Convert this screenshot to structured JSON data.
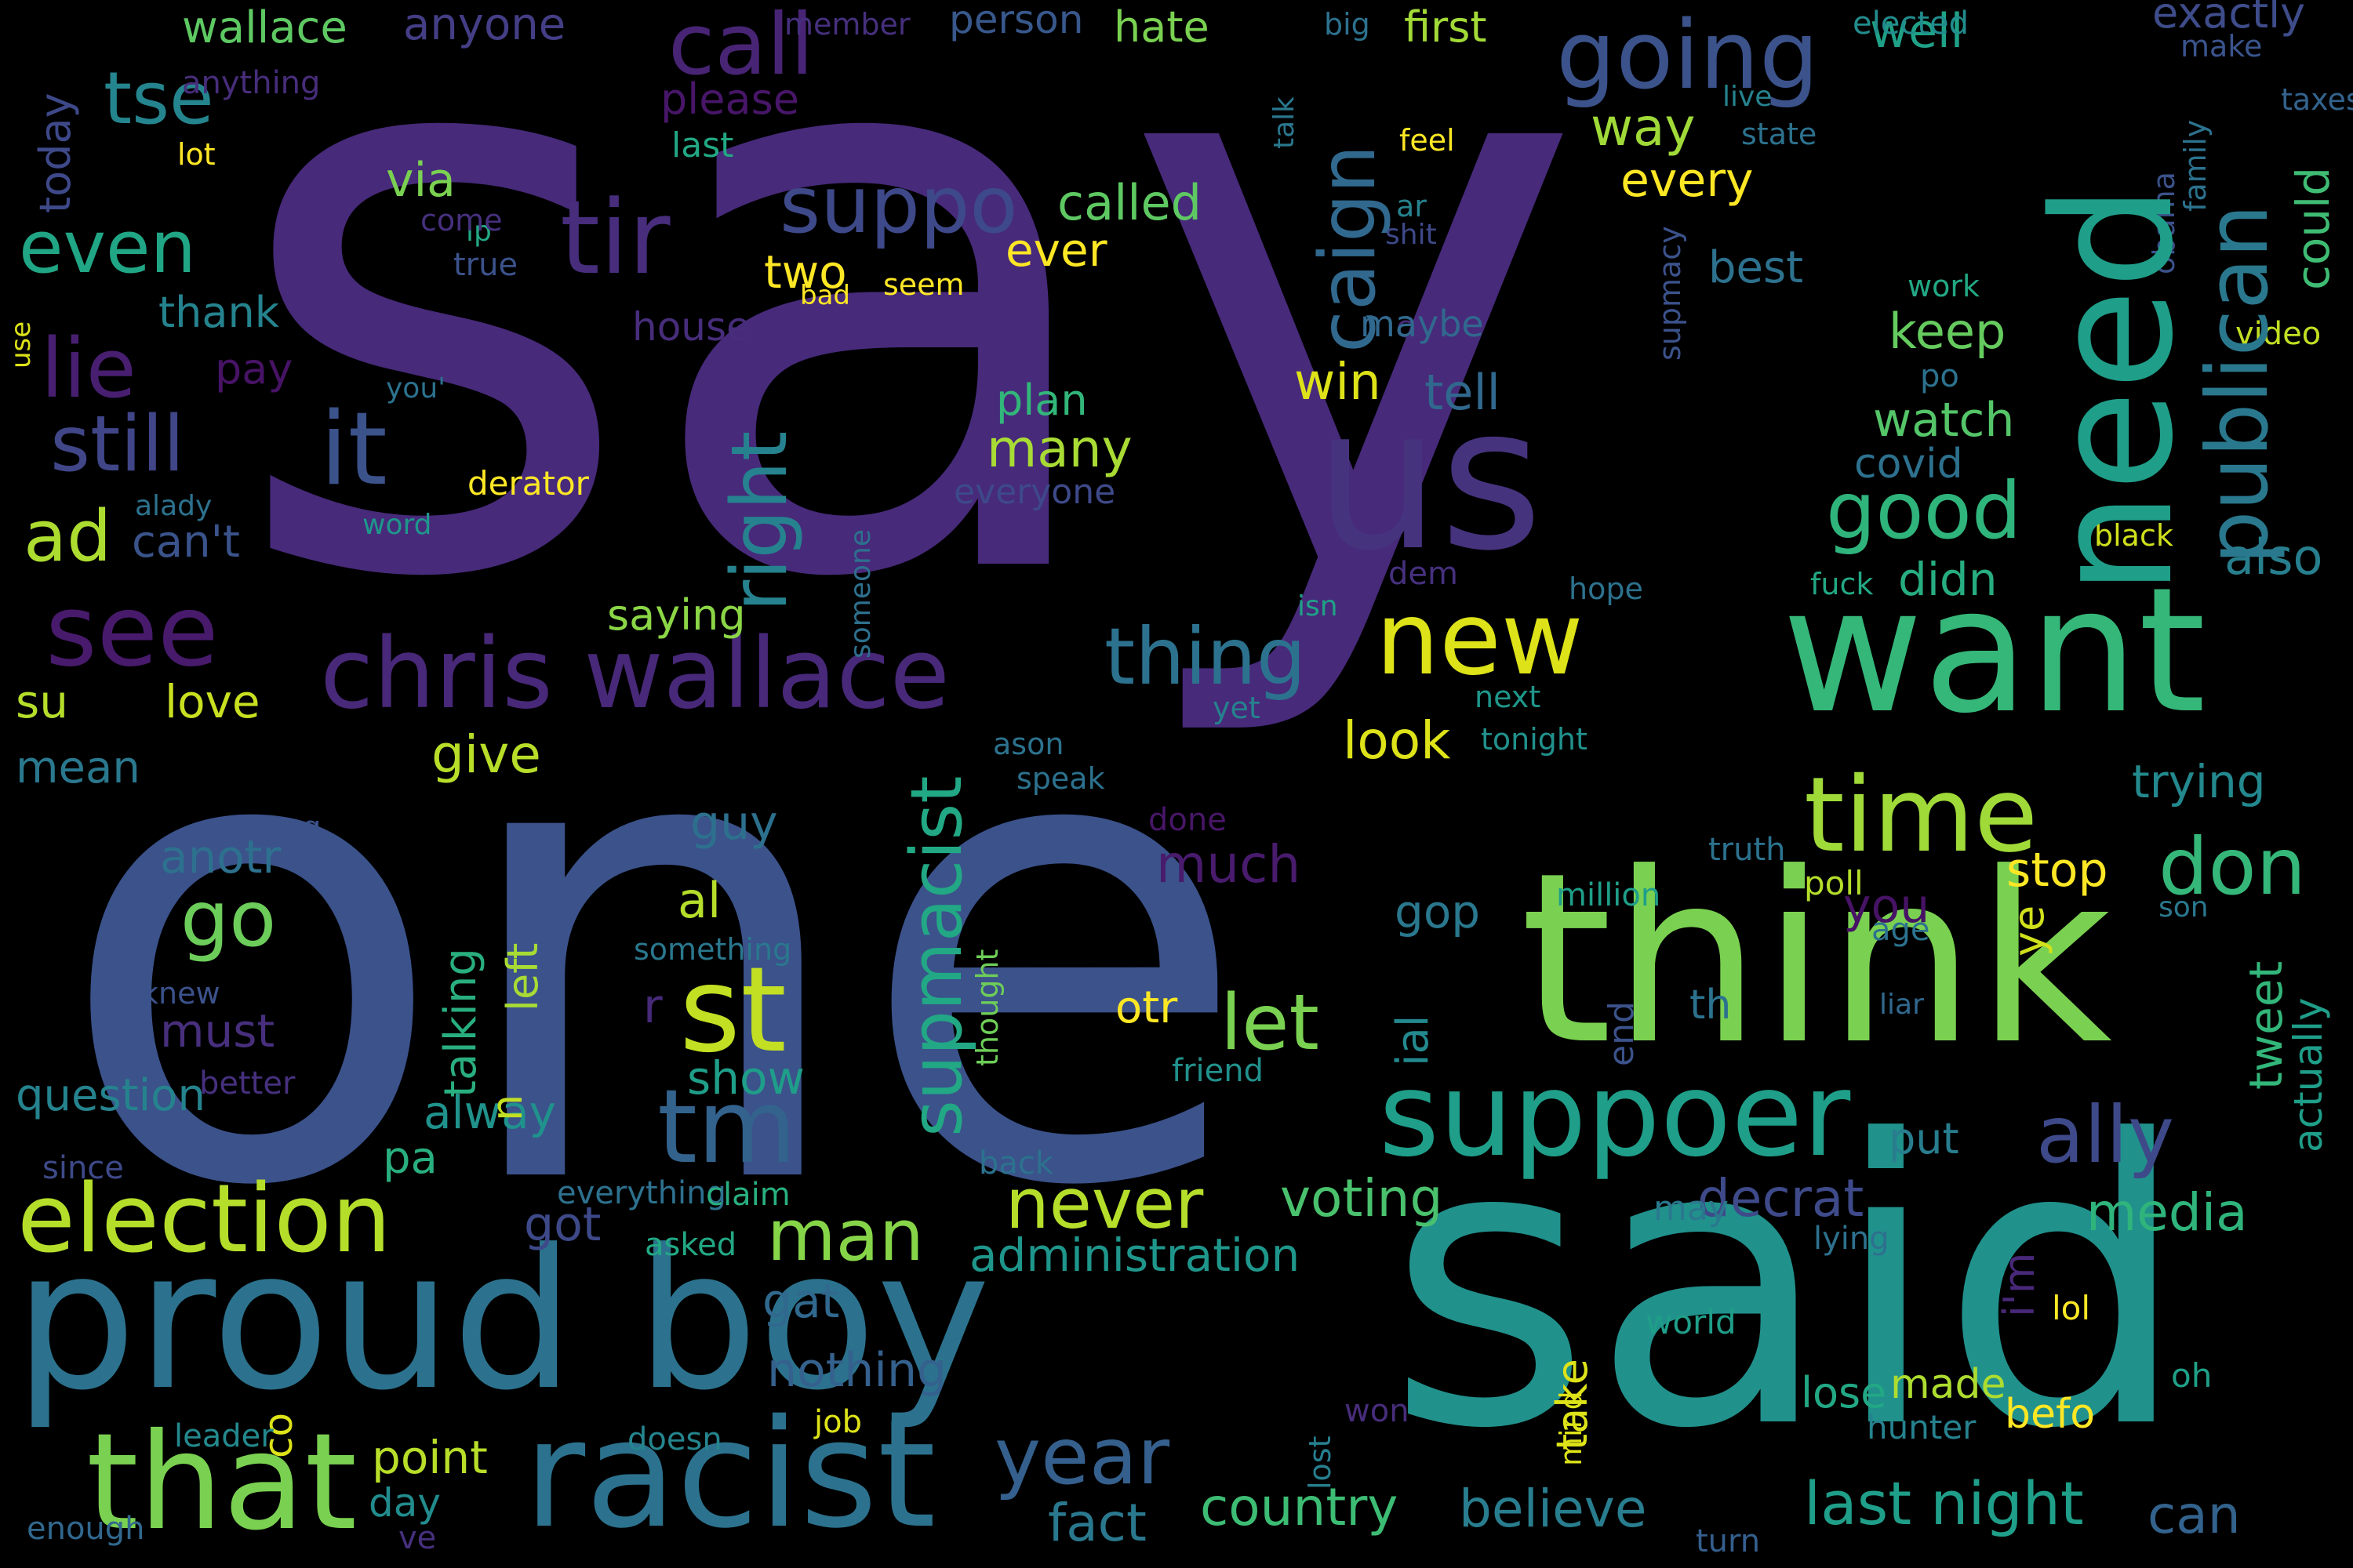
{
  "words": [
    {
      "text": "say",
      "color": "#472a7a"
    },
    {
      "text": "one",
      "color": "#3b528b"
    },
    {
      "text": "said",
      "color": "#21918c"
    },
    {
      "text": "think",
      "color": "#7ad151"
    },
    {
      "text": "proud boy",
      "color": "#2c728e"
    },
    {
      "text": "want",
      "color": "#35b779"
    },
    {
      "text": "need",
      "color": "#1f9e89"
    },
    {
      "text": "us",
      "color": "#46337e"
    },
    {
      "text": "racist",
      "color": "#2c728e"
    },
    {
      "text": "that",
      "color": "#7ad151"
    },
    {
      "text": "suppoer",
      "color": "#1f9e89"
    },
    {
      "text": "chris wallace",
      "color": "#482878"
    },
    {
      "text": "election",
      "color": "#b5de2b"
    },
    {
      "text": "tm",
      "color": "#33638d"
    },
    {
      "text": "st",
      "color": "#c2df23"
    },
    {
      "text": "new",
      "color": "#dde318"
    },
    {
      "text": "time",
      "color": "#a0da39"
    },
    {
      "text": "going",
      "color": "#3b528b"
    },
    {
      "text": "tir",
      "color": "#472d7b"
    },
    {
      "text": "see",
      "color": "#481a6c"
    },
    {
      "text": "it",
      "color": "#3b528b"
    },
    {
      "text": "publican",
      "color": "#2a788e"
    },
    {
      "text": "supmacist",
      "color": "#22a884"
    },
    {
      "text": "year",
      "color": "#35608d"
    },
    {
      "text": "call",
      "color": "#482475"
    },
    {
      "text": "caign",
      "color": "#31688e"
    },
    {
      "text": "suppo",
      "color": "#3e4989"
    },
    {
      "text": "right",
      "color": "#26828e"
    },
    {
      "text": "lie",
      "color": "#481f70"
    },
    {
      "text": "still",
      "color": "#404688"
    },
    {
      "text": "thing",
      "color": "#2c728e"
    },
    {
      "text": "go",
      "color": "#6ccd5a"
    },
    {
      "text": "never",
      "color": "#b5de2b"
    },
    {
      "text": "let",
      "color": "#7ad151"
    },
    {
      "text": "don",
      "color": "#35b779"
    },
    {
      "text": "good",
      "color": "#2fb47c"
    },
    {
      "text": "ally",
      "color": "#3e4989"
    },
    {
      "text": "man",
      "color": "#86d549"
    },
    {
      "text": "even",
      "color": "#21a685"
    },
    {
      "text": "tse",
      "color": "#25858e"
    },
    {
      "text": "ad",
      "color": "#addc30"
    },
    {
      "text": "last night",
      "color": "#1f9e89"
    },
    {
      "text": "country",
      "color": "#3dbc74"
    },
    {
      "text": "believe",
      "color": "#287d8e"
    },
    {
      "text": "fact",
      "color": "#2a788e"
    },
    {
      "text": "can",
      "color": "#33638d"
    },
    {
      "text": "media",
      "color": "#2fb47c"
    },
    {
      "text": "voting",
      "color": "#4ac16d"
    },
    {
      "text": "decrat",
      "color": "#3e4a89"
    },
    {
      "text": "administration",
      "color": "#1f968b"
    },
    {
      "text": "tn",
      "color": "#dde318"
    },
    {
      "text": "look",
      "color": "#dde318"
    },
    {
      "text": "much",
      "color": "#481b6d"
    },
    {
      "text": "many",
      "color": "#a8db34"
    },
    {
      "text": "keep",
      "color": "#65cb5e"
    },
    {
      "text": "watch",
      "color": "#54c568"
    },
    {
      "text": "tell",
      "color": "#31688e"
    },
    {
      "text": "win",
      "color": "#dde318"
    },
    {
      "text": "way",
      "color": "#a0da39"
    },
    {
      "text": "every",
      "color": "#fde725"
    },
    {
      "text": "well",
      "color": "#1fa187"
    },
    {
      "text": "could",
      "color": "#3fbc73"
    },
    {
      "text": "also",
      "color": "#277f8e"
    },
    {
      "text": "didn",
      "color": "#27ad81"
    },
    {
      "text": "trying",
      "color": "#23898e"
    },
    {
      "text": "tweet",
      "color": "#32b67a"
    },
    {
      "text": "actually",
      "color": "#1f9e89"
    },
    {
      "text": "member",
      "color": "#7ad151"
    },
    {
      "text": "hate",
      "color": "#a2da37"
    },
    {
      "text": "first",
      "color": "#5ec962"
    },
    {
      "text": "wallace",
      "color": "#433e85"
    },
    {
      "text": "anyone",
      "color": "#481668"
    },
    {
      "text": "please",
      "color": "#38588c"
    },
    {
      "text": "person",
      "color": "#3e4c8a"
    },
    {
      "text": "exactly",
      "color": "#228c8d"
    },
    {
      "text": "elected",
      "color": "#3a548c"
    },
    {
      "text": "make",
      "color": "#7ad151"
    },
    {
      "text": "via",
      "color": "#5ec962"
    },
    {
      "text": "called",
      "color": "#fde725"
    },
    {
      "text": "ever",
      "color": "#fde725"
    },
    {
      "text": "two",
      "color": "#2d718e"
    },
    {
      "text": "best",
      "color": "#25838e"
    },
    {
      "text": "thank",
      "color": "#32b67a"
    },
    {
      "text": "plan",
      "color": "#2a788e"
    },
    {
      "text": "gop",
      "color": "#2d708e"
    },
    {
      "text": "guy",
      "color": "#b5de2b"
    },
    {
      "text": "al",
      "color": "#b8de29"
    },
    {
      "text": "give",
      "color": "#2d718e"
    },
    {
      "text": "anotr",
      "color": "#472f7d"
    },
    {
      "text": "must",
      "color": "#1f9e89"
    },
    {
      "text": "show",
      "color": "#b8de29"
    },
    {
      "text": "point",
      "color": "#228c8d"
    },
    {
      "text": "day",
      "color": "#3e4989"
    },
    {
      "text": "got",
      "color": "#31688e"
    },
    {
      "text": "gat",
      "color": "#34618d"
    },
    {
      "text": "nothing",
      "color": "#dde318"
    },
    {
      "text": "take",
      "color": "#482878"
    },
    {
      "text": "i'm",
      "color": "#addc30"
    },
    {
      "text": "made",
      "color": "#fde725"
    },
    {
      "text": "befo",
      "color": "#22a884"
    },
    {
      "text": "lose",
      "color": "#287d8e"
    },
    {
      "text": "put",
      "color": "#d0e11c"
    },
    {
      "text": "ye",
      "color": "#fde725"
    },
    {
      "text": "stop",
      "color": "#471365"
    },
    {
      "text": "you",
      "color": "#23898e"
    },
    {
      "text": "ial",
      "color": "#fde725"
    },
    {
      "text": "otr",
      "color": "#20928c"
    },
    {
      "text": "alway",
      "color": "#29af7f"
    },
    {
      "text": "pa",
      "color": "#25838e"
    },
    {
      "text": "question",
      "color": "#29af7f"
    },
    {
      "text": "talking",
      "color": "#a8db34"
    },
    {
      "text": "left",
      "color": "#c8e020"
    },
    {
      "text": "love",
      "color": "#b5de2b"
    },
    {
      "text": "su",
      "color": "#2a788e"
    },
    {
      "text": "mean",
      "color": "#8bd646"
    },
    {
      "text": "saying",
      "color": "#3e4989"
    },
    {
      "text": "today",
      "color": "#471365"
    },
    {
      "text": "pay",
      "color": "#3a538b"
    },
    {
      "text": "can't",
      "color": "#dde318"
    },
    {
      "text": "co",
      "color": "#c2df23"
    },
    {
      "text": "n",
      "color": "#472a7a"
    },
    {
      "text": "r",
      "color": "#2c728e"
    },
    {
      "text": "th",
      "color": "#3b528b"
    },
    {
      "text": "end",
      "color": "#fde725"
    },
    {
      "text": "lol",
      "color": "#1fa188"
    },
    {
      "text": "oh",
      "color": "#2a788e"
    },
    {
      "text": "may",
      "color": "#26828e"
    },
    {
      "text": "hunter",
      "color": "#2d718e"
    },
    {
      "text": "lying",
      "color": "#1f9e89"
    },
    {
      "text": "world",
      "color": "#472d7b"
    },
    {
      "text": "won",
      "color": "#dde318"
    },
    {
      "text": "mind",
      "color": "#277f8e"
    },
    {
      "text": "lost",
      "color": "#355f8d"
    },
    {
      "text": "turn",
      "color": "#31688e"
    },
    {
      "text": "enough",
      "color": "#46307e"
    },
    {
      "text": "ve",
      "color": "#23898e"
    },
    {
      "text": "leader",
      "color": "#25858e"
    },
    {
      "text": "doesn",
      "color": "#dde318"
    },
    {
      "text": "job",
      "color": "#22a884"
    },
    {
      "text": "asked",
      "color": "#2d718e"
    },
    {
      "text": "everything",
      "color": "#29af7f"
    },
    {
      "text": "claim",
      "color": "#2c728e"
    },
    {
      "text": "back",
      "color": "#3e4a89"
    },
    {
      "text": "since",
      "color": "#46307e"
    },
    {
      "text": "better",
      "color": "#3b528b"
    },
    {
      "text": "knew",
      "color": "#3b528b"
    },
    {
      "text": "wrong",
      "color": "#2a788e"
    },
    {
      "text": "something",
      "color": "#6ece58"
    },
    {
      "text": "thought",
      "color": "#21918c"
    },
    {
      "text": "friend",
      "color": "#481668"
    },
    {
      "text": "done",
      "color": "#2c728e"
    },
    {
      "text": "truth",
      "color": "#b5de2b"
    },
    {
      "text": "poll",
      "color": "#1f9e89"
    },
    {
      "text": "million",
      "color": "#2c728e"
    },
    {
      "text": "age",
      "color": "#2a788e"
    },
    {
      "text": "son",
      "color": "#31688e"
    },
    {
      "text": "liar",
      "color": "#2c728e"
    },
    {
      "text": "ason",
      "color": "#2c728e"
    },
    {
      "text": "speak",
      "color": "#21918c"
    },
    {
      "text": "tonight",
      "color": "#1f968b"
    },
    {
      "text": "next",
      "color": "#26828e"
    },
    {
      "text": "yet",
      "color": "#1fa187"
    },
    {
      "text": "isn",
      "color": "#2d708e"
    },
    {
      "text": "someone",
      "color": "#46307e"
    },
    {
      "text": "dem",
      "color": "#2c728e"
    },
    {
      "text": "hope",
      "color": "#22a884"
    },
    {
      "text": "fuck",
      "color": "#d0e11c"
    },
    {
      "text": "black",
      "color": "#2d718e"
    },
    {
      "text": "covid",
      "color": "#2c728e"
    },
    {
      "text": "po",
      "color": "#c2df23"
    },
    {
      "text": "video",
      "color": "#22a884"
    },
    {
      "text": "work",
      "color": "#2c728e"
    },
    {
      "text": "family",
      "color": "#3b528b"
    },
    {
      "text": "obama",
      "color": "#3b528b"
    },
    {
      "text": "supmacy",
      "color": "#472a7a"
    },
    {
      "text": "ca",
      "color": "#31688e"
    },
    {
      "text": "maybe",
      "color": "#3e4989"
    },
    {
      "text": "shit",
      "color": "#26828e"
    },
    {
      "text": "ar",
      "color": "#fde725"
    },
    {
      "text": "feel",
      "color": "#2c728e"
    },
    {
      "text": "state",
      "color": "#26828e"
    },
    {
      "text": "live",
      "color": "#2a788e"
    },
    {
      "text": "talk",
      "color": "#2d718e"
    },
    {
      "text": "big",
      "color": "#33638d"
    },
    {
      "text": "taxes",
      "color": "#fde725"
    },
    {
      "text": "seem",
      "color": "#fde725"
    },
    {
      "text": "bad",
      "color": "#472d7b"
    },
    {
      "text": "house",
      "color": "#3b528b"
    },
    {
      "text": "true",
      "color": "#22a884"
    },
    {
      "text": "lp",
      "color": "#46307e"
    },
    {
      "text": "come",
      "color": "#fde725"
    },
    {
      "text": "lot",
      "color": "#472d7b"
    },
    {
      "text": "anything",
      "color": "#22a884"
    },
    {
      "text": "last",
      "color": "#dde318"
    },
    {
      "text": "use",
      "color": "#2c728e"
    },
    {
      "text": "you'",
      "color": "#fde725"
    },
    {
      "text": "derator",
      "color": "#1f968b"
    },
    {
      "text": "word",
      "color": "#2c728e"
    },
    {
      "text": "alady",
      "color": "#3e4989"
    },
    {
      "text": "everyone",
      "color": "#a0da39"
    }
  ]
}
